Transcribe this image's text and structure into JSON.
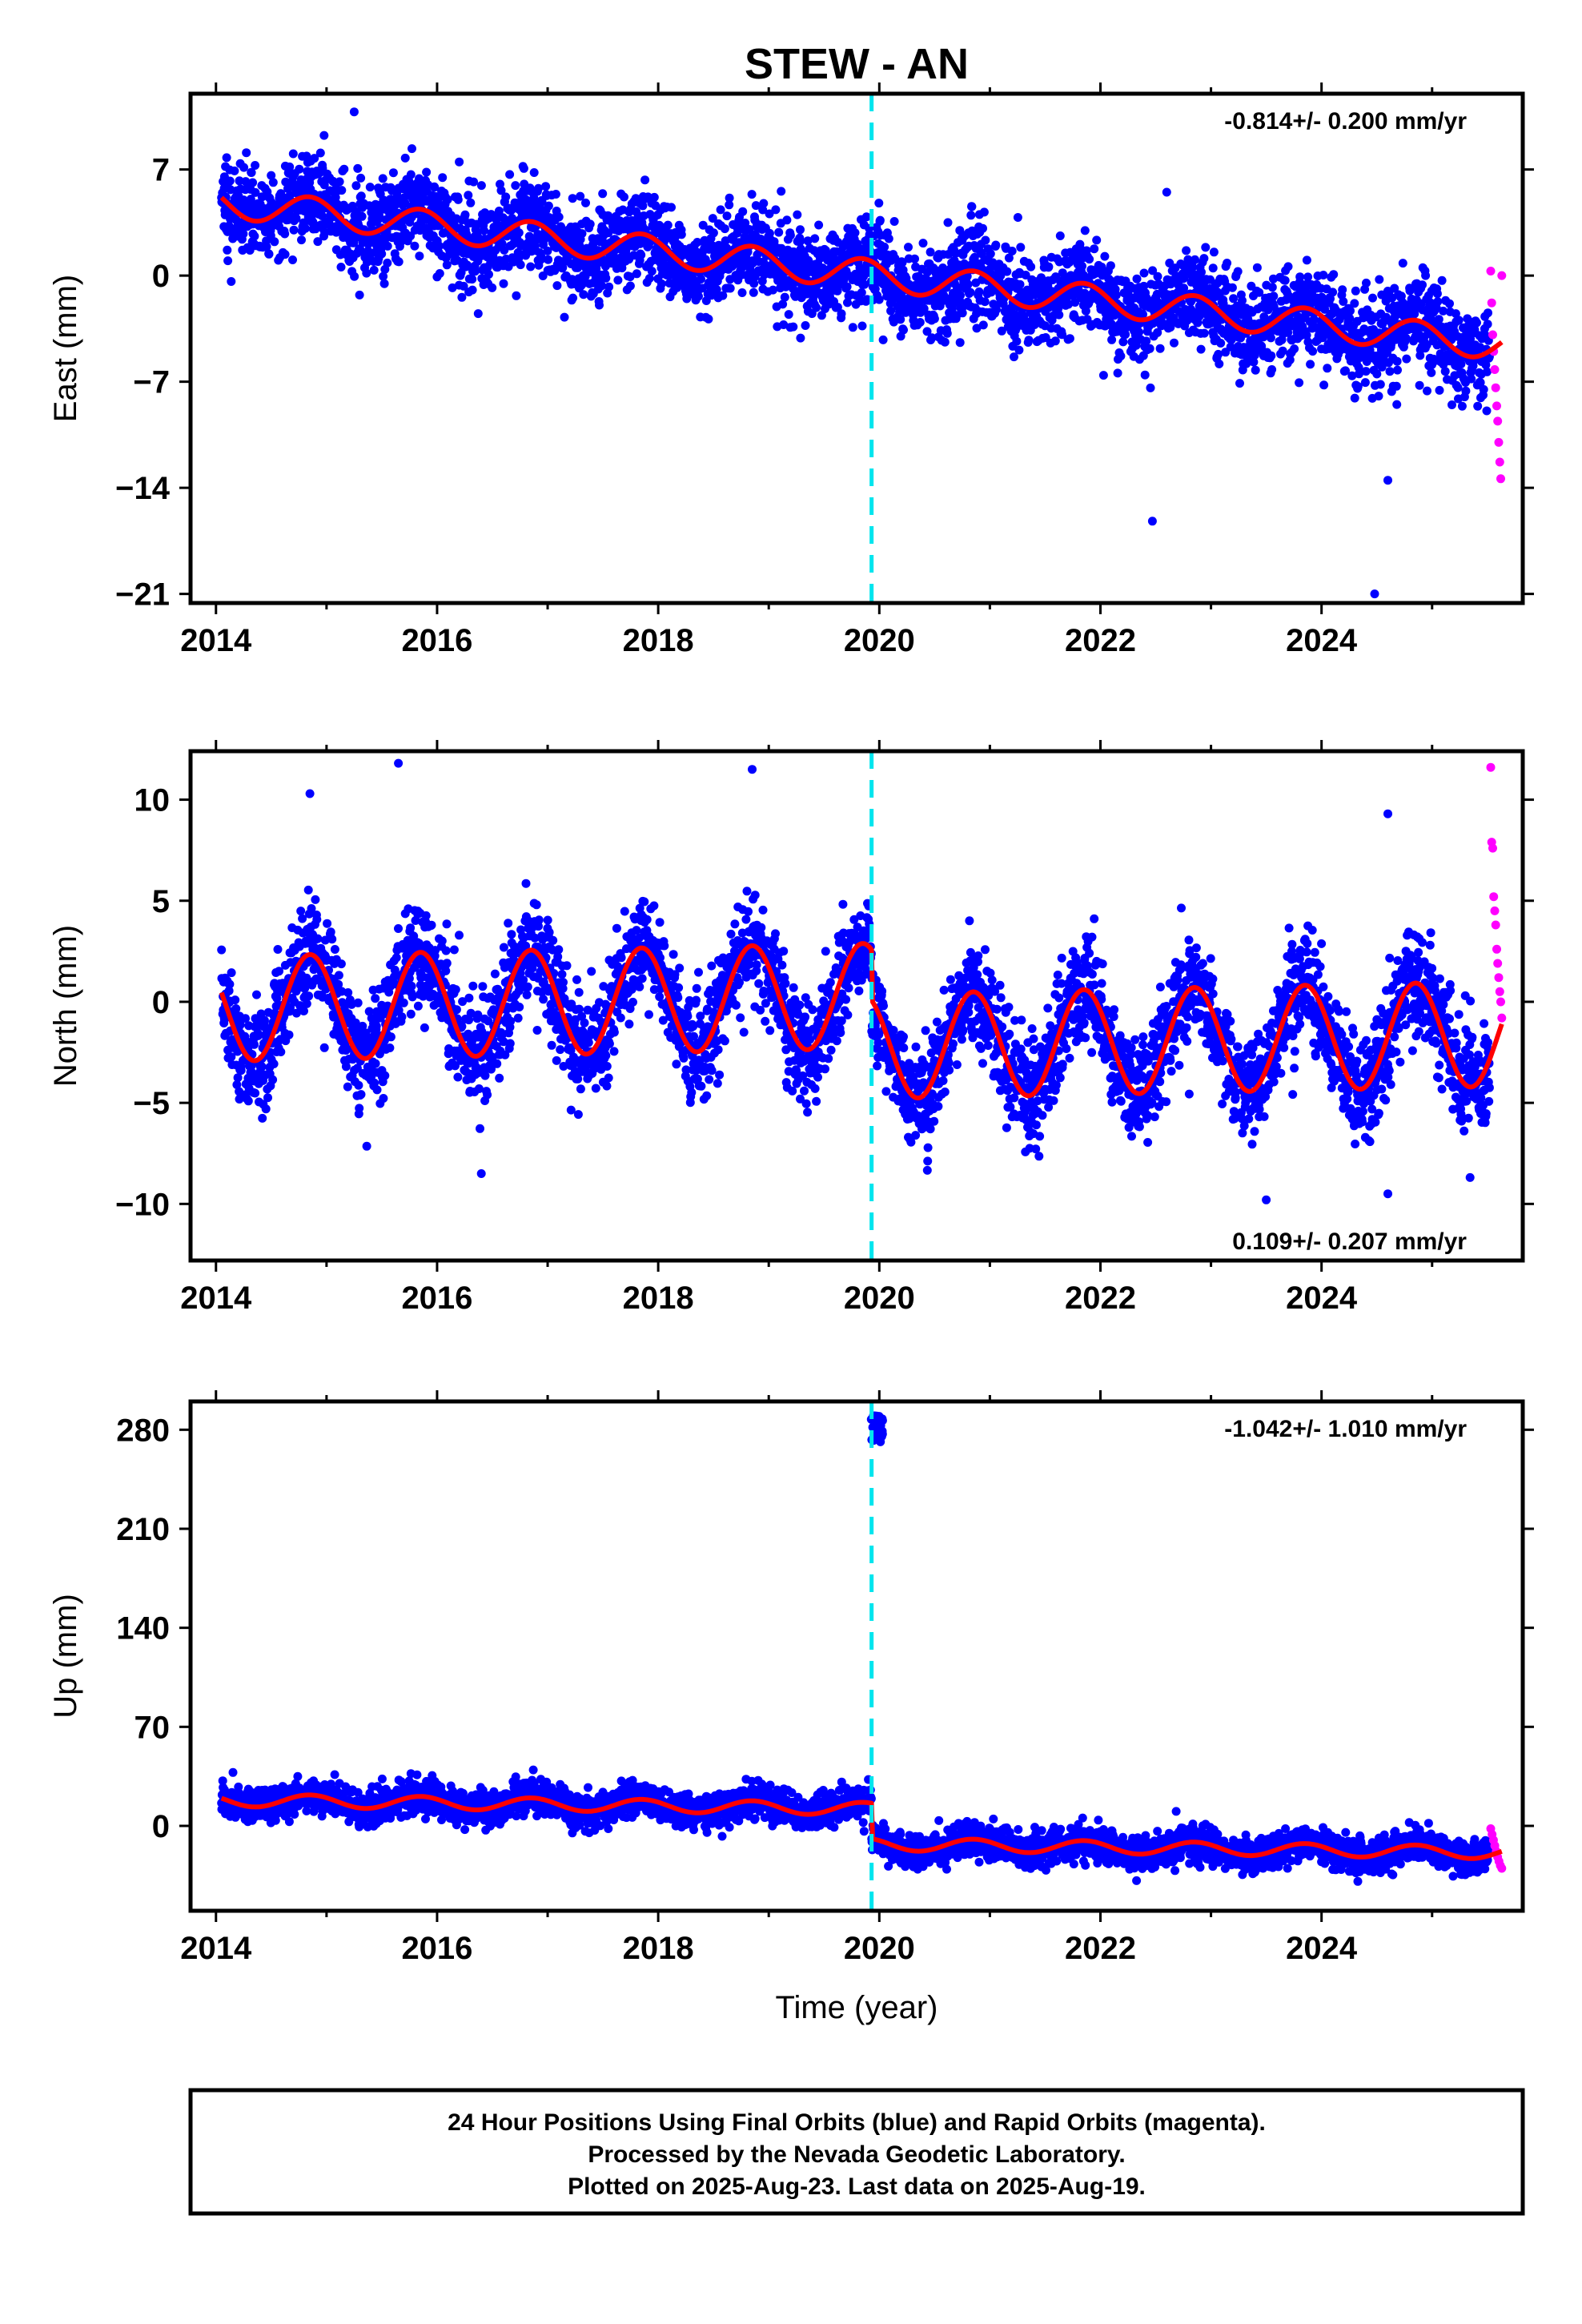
{
  "title": "STEW - AN",
  "xlabel": "Time (year)",
  "footer": [
    "24 Hour Positions Using Final Orbits (blue) and Rapid Orbits (magenta).",
    "Processed by the Nevada Geodetic Laboratory.",
    "Plotted on 2025-Aug-23. Last data on 2025-Aug-19."
  ],
  "colors": {
    "final_orbits": "#0000ff",
    "rapid_orbits": "#ff00ff",
    "model_fit": "#ff0000",
    "event_line": "#00e5ee",
    "frame": "#000000"
  },
  "chart_data": [
    {
      "type": "scatter",
      "component": "East",
      "ylabel": "East (mm)",
      "rate_text": "-0.814+/- 0.200 mm/yr",
      "xlim": [
        2013.77,
        2025.82
      ],
      "ylim": [
        -21.6,
        12.0
      ],
      "xticks": [
        2014,
        2016,
        2018,
        2020,
        2022,
        2024
      ],
      "xtick_labels": [
        "2014",
        "2016",
        "2018",
        "2020",
        "2022",
        "2024"
      ],
      "yticks": [
        7,
        0,
        -7,
        -14,
        -21
      ],
      "ytick_labels": [
        "7",
        "0",
        "−7",
        "−14",
        "−21"
      ],
      "event_line_x": 2019.93,
      "series": [
        {
          "name": "Final Orbits (blue)",
          "start": 2014.05,
          "end": 2025.52,
          "model": {
            "a": 0.0,
            "b": -0.814,
            "annual": 1.0,
            "offset_at_event": 0.0
          },
          "scatter_sd": 1.5,
          "outliers": [
            [
              2015.25,
              10.8
            ],
            [
              2022.47,
              -16.2
            ],
            [
              2024.48,
              -21.0
            ],
            [
              2024.6,
              -13.5
            ],
            [
              2022.6,
              5.5
            ],
            [
              2016.2,
              7.5
            ]
          ]
        },
        {
          "name": "Rapid Orbits (magenta)",
          "start": 2025.53,
          "end": 2025.63,
          "values": [
            0.3,
            -1.8,
            -3.9,
            -5.0,
            -6.2,
            -7.4,
            -8.6,
            -9.6,
            -11.0,
            -12.3,
            -13.4,
            0.0
          ]
        }
      ]
    },
    {
      "type": "scatter",
      "component": "North",
      "ylabel": "North (mm)",
      "rate_text": "0.109+/- 0.207 mm/yr",
      "xlim": [
        2013.77,
        2025.82
      ],
      "ylim": [
        -12.8,
        12.4
      ],
      "xticks": [
        2014,
        2016,
        2018,
        2020,
        2022,
        2024
      ],
      "xtick_labels": [
        "2014",
        "2016",
        "2018",
        "2020",
        "2022",
        "2024"
      ],
      "yticks": [
        10,
        5,
        0,
        -5,
        -10
      ],
      "ytick_labels": [
        "10",
        "5",
        "0",
        "−5",
        "−10"
      ],
      "event_line_x": 2019.93,
      "series": [
        {
          "name": "Final Orbits (blue)",
          "start": 2014.05,
          "end": 2025.52,
          "model": {
            "a": 0.3,
            "b": 0.109,
            "annual": 2.6,
            "offset_at_event": -2.5
          },
          "scatter_sd": 1.3,
          "outliers": [
            [
              2015.65,
              11.8
            ],
            [
              2018.85,
              11.5
            ],
            [
              2014.85,
              10.3
            ],
            [
              2016.4,
              -8.5
            ],
            [
              2023.5,
              -9.8
            ],
            [
              2024.6,
              -9.5
            ],
            [
              2024.6,
              9.3
            ]
          ]
        },
        {
          "name": "Rapid Orbits (magenta)",
          "start": 2025.53,
          "end": 2025.63,
          "values": [
            11.6,
            7.9,
            7.6,
            5.2,
            4.5,
            3.8,
            2.6,
            1.9,
            1.2,
            0.5,
            0.0,
            -0.8
          ]
        }
      ]
    },
    {
      "type": "scatter",
      "component": "Up",
      "ylabel": "Up (mm)",
      "rate_text": "-1.042+/- 1.010 mm/yr",
      "xlim": [
        2013.77,
        2025.82
      ],
      "ylim": [
        -60,
        300
      ],
      "xticks": [
        2014,
        2016,
        2018,
        2020,
        2022,
        2024
      ],
      "xtick_labels": [
        "2014",
        "2016",
        "2018",
        "2020",
        "2022",
        "2024"
      ],
      "yticks": [
        280,
        210,
        140,
        70,
        0
      ],
      "ytick_labels": [
        "280",
        "210",
        "140",
        "70",
        "0"
      ],
      "event_line_x": 2019.93,
      "series": [
        {
          "name": "Final Orbits (blue)",
          "start": 2014.05,
          "end": 2025.52,
          "model": {
            "a": 12.0,
            "b": -1.042,
            "annual": 4.5,
            "offset_at_event": -25.0
          },
          "scatter_sd": 6.0,
          "burst": {
            "x0": 2019.92,
            "x1": 2020.03,
            "y0": 270,
            "y1": 290
          }
        },
        {
          "name": "Rapid Orbits (magenta)",
          "start": 2025.53,
          "end": 2025.63,
          "values": [
            -2,
            -6,
            -10,
            -14,
            -18,
            -22,
            -25,
            -28,
            -30
          ]
        }
      ]
    }
  ]
}
